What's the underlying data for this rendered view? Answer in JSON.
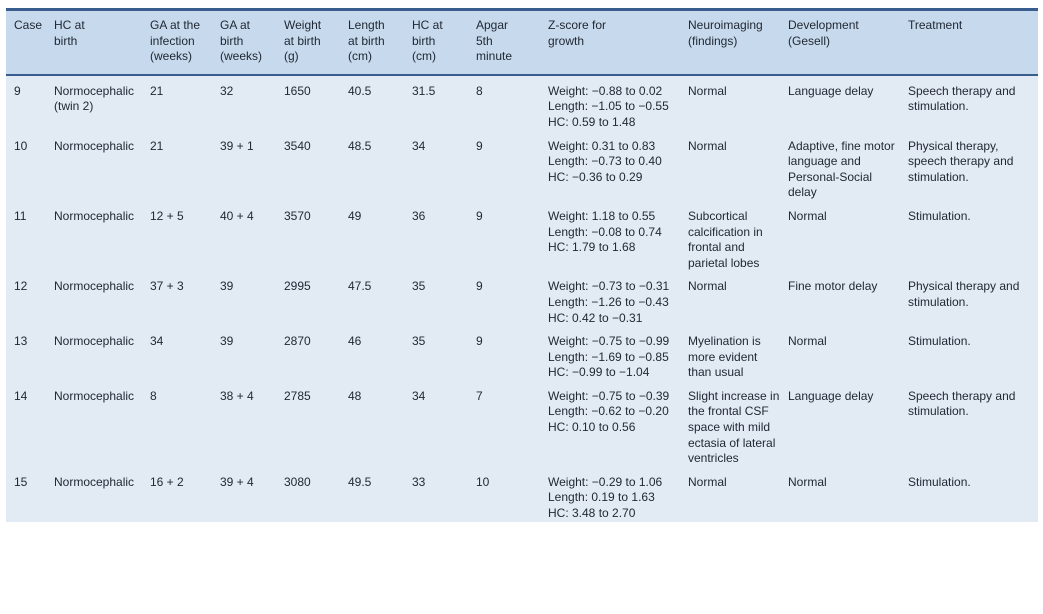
{
  "theme": {
    "rule_color": "#395d8f",
    "header_bg": "#c7d9ec",
    "body_bg": "#e2eaf4",
    "text_color": "#212934"
  },
  "table": {
    "columns": [
      "Case",
      "HC at\nbirth",
      "GA at the\ninfection\n(weeks)",
      "GA at\nbirth\n(weeks)",
      "Weight\nat birth\n(g)",
      "Length\nat birth\n(cm)",
      "HC at\nbirth\n(cm)",
      "Apgar\n5th\nminute",
      "Z-score for\ngrowth",
      "Neuroimaging\n(findings)",
      "Development\n(Gesell)",
      "Treatment"
    ],
    "rows": [
      {
        "case": "9",
        "hc_birth": "Normocephalic (twin 2)",
        "ga_infection": "21",
        "ga_birth": "32",
        "weight_g": "1650",
        "length_cm": "40.5",
        "hc_cm": "31.5",
        "apgar": "8",
        "z_scores": [
          "Weight: −0.88 to 0.02",
          "Length: −1.05 to −0.55",
          "HC: 0.59 to 1.48"
        ],
        "neuroimaging": "Normal",
        "development": "Language delay",
        "treatment": "Speech therapy and stimulation."
      },
      {
        "case": "10",
        "hc_birth": "Normocephalic",
        "ga_infection": "21",
        "ga_birth": "39 + 1",
        "weight_g": "3540",
        "length_cm": "48.5",
        "hc_cm": "34",
        "apgar": "9",
        "z_scores": [
          "Weight: 0.31 to 0.83",
          "Length: −0.73 to 0.40",
          "HC: −0.36 to 0.29"
        ],
        "neuroimaging": "Normal",
        "development": "Adaptive, fine motor language and Personal-Social delay",
        "treatment": "Physical therapy, speech therapy and stimulation."
      },
      {
        "case": "11",
        "hc_birth": "Normocephalic",
        "ga_infection": "12 + 5",
        "ga_birth": "40 + 4",
        "weight_g": "3570",
        "length_cm": "49",
        "hc_cm": "36",
        "apgar": "9",
        "z_scores": [
          "Weight: 1.18 to 0.55",
          "Length: −0.08 to 0.74",
          "HC: 1.79 to 1.68"
        ],
        "neuroimaging": "Subcortical calcification in frontal and parietal lobes",
        "development": "Normal",
        "treatment": "Stimulation."
      },
      {
        "case": "12",
        "hc_birth": "Normocephalic",
        "ga_infection": "37 + 3",
        "ga_birth": "39",
        "weight_g": "2995",
        "length_cm": "47.5",
        "hc_cm": "35",
        "apgar": "9",
        "z_scores": [
          "Weight: −0.73 to −0.31",
          "Length: −1.26 to −0.43",
          "HC: 0.42 to −0.31"
        ],
        "neuroimaging": "Normal",
        "development": "Fine motor delay",
        "treatment": "Physical therapy and stimulation."
      },
      {
        "case": "13",
        "hc_birth": "Normocephalic",
        "ga_infection": "34",
        "ga_birth": "39",
        "weight_g": "2870",
        "length_cm": "46",
        "hc_cm": "35",
        "apgar": "9",
        "z_scores": [
          "Weight: −0.75 to −0.99",
          "Length: −1.69 to −0.85",
          "HC: −0.99 to −1.04"
        ],
        "neuroimaging": "Myelination is more evident than usual",
        "development": "Normal",
        "treatment": "Stimulation."
      },
      {
        "case": "14",
        "hc_birth": "Normocephalic",
        "ga_infection": "8",
        "ga_birth": "38 + 4",
        "weight_g": "2785",
        "length_cm": "48",
        "hc_cm": "34",
        "apgar": "7",
        "z_scores": [
          "Weight: −0.75 to −0.39",
          "Length: −0.62 to −0.20",
          "HC: 0.10 to 0.56"
        ],
        "neuroimaging": "Slight increase in the frontal CSF space with mild ectasia of lateral ventricles",
        "development": "Language delay",
        "treatment": "Speech therapy and stimulation."
      },
      {
        "case": "15",
        "hc_birth": "Normocephalic",
        "ga_infection": "16 + 2",
        "ga_birth": "39 + 4",
        "weight_g": "3080",
        "length_cm": "49.5",
        "hc_cm": "33",
        "apgar": "10",
        "z_scores": [
          "Weight: −0.29 to 1.06",
          "Length: 0.19 to 1.63",
          "HC: 3.48 to 2.70"
        ],
        "neuroimaging": "Normal",
        "development": "Normal",
        "treatment": "Stimulation."
      }
    ]
  }
}
